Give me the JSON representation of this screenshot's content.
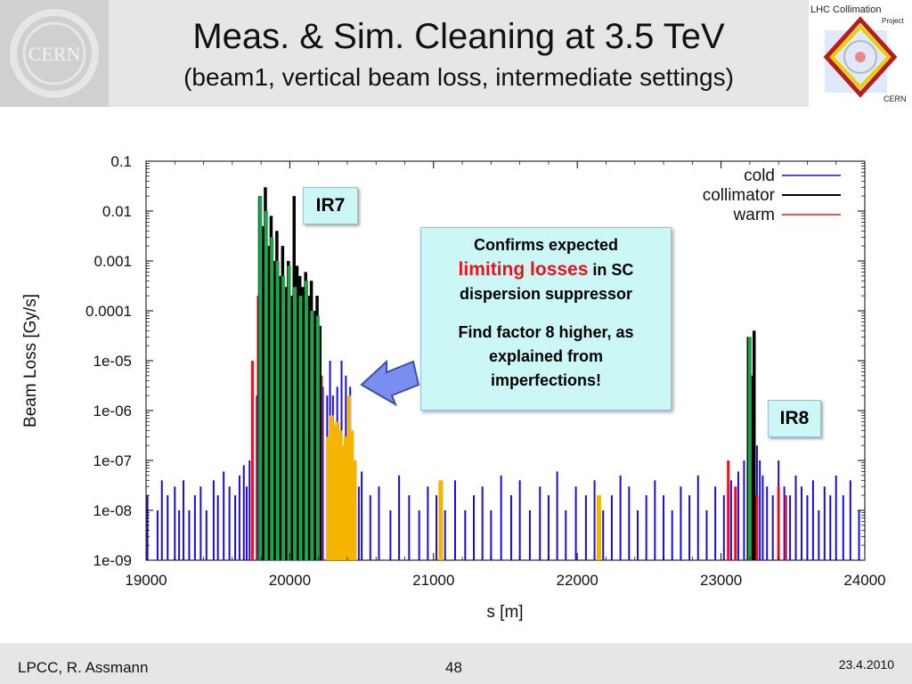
{
  "header": {
    "title": "Meas. & Sim. Cleaning at 3.5 TeV",
    "subtitle": "(beam1, vertical beam loss, intermediate settings)",
    "left_logo_text": "CERN",
    "right_logo": {
      "line1": "LHC Collimation",
      "line2": "Project",
      "line3": "CERN"
    }
  },
  "annotations": {
    "ir7": "IR7",
    "ir8": "IR8",
    "callout": {
      "line1": "Confirms expected",
      "highlight": "limiting losses",
      "line2_rest": " in SC",
      "line3": "dispersion suppressor",
      "line4": "Find factor 8 higher, as",
      "line5": "explained from",
      "line6": "imperfections!"
    }
  },
  "footer": {
    "author": "LPCC, R. Assmann",
    "page": "48",
    "date": "23.4.2010"
  },
  "colors": {
    "cold": "#1a0dd9",
    "collimator": "#000000",
    "warm": "#e8141b",
    "green_bars": "#22a34a",
    "orange_bars": "#f5b400",
    "callout_bg": "#ccf7f7",
    "highlight": "#e8141b"
  },
  "chart_data": {
    "type": "bar",
    "xlabel": "s [m]",
    "ylabel": "Beam Loss [Gy/s]",
    "xlim": [
      19000,
      24000
    ],
    "ylim": [
      1e-09,
      0.1
    ],
    "log_y": true,
    "x_ticks": [
      "19000",
      "20000",
      "21000",
      "22000",
      "23000",
      "24000"
    ],
    "y_ticks": [
      "0.1",
      "0.01",
      "0.001",
      "0.0001",
      "1e-05",
      "1e-06",
      "1e-07",
      "1e-08",
      "1e-09"
    ],
    "legend_position": "top-right",
    "series": [
      {
        "name": "cold",
        "color": "#1a0dd9",
        "x": [
          19010,
          19080,
          19110,
          19150,
          19200,
          19230,
          19260,
          19300,
          19340,
          19380,
          19420,
          19470,
          19500,
          19540,
          19580,
          19620,
          19650,
          19680,
          19700,
          19720,
          19740,
          19770,
          19790,
          19810,
          19830,
          19850,
          19870,
          19890,
          19910,
          19930,
          19950,
          19970,
          19990,
          20010,
          20030,
          20050,
          20070,
          20090,
          20110,
          20130,
          20150,
          20170,
          20190,
          20210,
          20230,
          20260,
          20280,
          20300,
          20330,
          20360,
          20390,
          20420,
          20450,
          20480,
          20500,
          20560,
          20620,
          20700,
          20760,
          20830,
          20900,
          20960,
          21020,
          21080,
          21150,
          21220,
          21280,
          21340,
          21400,
          21470,
          21540,
          21600,
          21670,
          21740,
          21800,
          21860,
          21920,
          21990,
          22060,
          22120,
          22180,
          22240,
          22300,
          22360,
          22420,
          22480,
          22540,
          22600,
          22660,
          22720,
          22780,
          22840,
          22900,
          22960,
          23020,
          23070,
          23120,
          23160,
          23190,
          23210,
          23230,
          23250,
          23270,
          23290,
          23320,
          23360,
          23400,
          23440,
          23480,
          23520,
          23560,
          23600,
          23640,
          23680,
          23720,
          23760,
          23800,
          23850,
          23900,
          23960
        ],
        "values": [
          2e-08,
          1e-08,
          4e-08,
          2e-08,
          3e-08,
          1e-08,
          4e-08,
          1e-08,
          2e-08,
          3e-08,
          1e-08,
          4e-08,
          2e-08,
          6e-08,
          3e-08,
          2e-08,
          5e-08,
          8e-08,
          3e-08,
          1e-07,
          3e-07,
          2e-06,
          5e-06,
          0.003,
          0.0001,
          3e-05,
          0.0002,
          1e-05,
          4e-05,
          2e-06,
          1e-05,
          3e-05,
          1e-06,
          5e-06,
          2e-05,
          4e-06,
          1e-05,
          2e-06,
          4e-06,
          1e-06,
          3e-06,
          2e-06,
          5e-06,
          1e-06,
          3e-06,
          2e-06,
          1e-05,
          2e-06,
          3e-06,
          1e-05,
          5e-06,
          3e-06,
          1e-07,
          3e-08,
          6e-08,
          2e-08,
          3e-08,
          1e-08,
          5e-08,
          2e-08,
          1e-08,
          3e-08,
          2e-08,
          1e-08,
          4e-08,
          1e-08,
          2e-08,
          3e-08,
          1e-08,
          5e-08,
          2e-08,
          4e-08,
          1e-08,
          3e-08,
          2e-08,
          6e-08,
          1e-08,
          3e-08,
          2e-08,
          4e-08,
          1e-08,
          2e-08,
          5e-08,
          3e-08,
          1e-08,
          2e-08,
          4e-08,
          2e-08,
          1e-08,
          3e-08,
          2e-08,
          5e-08,
          1e-08,
          3e-08,
          2e-08,
          4e-08,
          6e-08,
          1e-07,
          2e-05,
          3e-07,
          1e-06,
          2e-07,
          1e-07,
          5e-08,
          3e-08,
          2e-08,
          1e-07,
          3e-08,
          2e-08,
          5e-08,
          3e-08,
          2e-08,
          4e-08,
          1e-08,
          3e-08,
          2e-08,
          5e-08,
          2e-08,
          4e-08,
          1e-08
        ]
      },
      {
        "name": "collimator",
        "color": "#000000",
        "x": [
          19790,
          19810,
          19830,
          19850,
          19870,
          19890,
          19910,
          19930,
          19950,
          19970,
          19990,
          20010,
          20030,
          20050,
          20070,
          20090,
          20110,
          20130,
          20150,
          20170,
          20190,
          20210,
          23190,
          23210,
          23230
        ],
        "values": [
          0.02,
          0.005,
          0.03,
          0.002,
          0.008,
          0.001,
          0.004,
          0.0005,
          0.002,
          0.0003,
          0.001,
          0.0002,
          0.02,
          0.0008,
          0.0005,
          0.0003,
          0.0006,
          0.0002,
          0.0004,
          0.0001,
          0.0002,
          5e-05,
          3e-05,
          5e-06,
          4e-05
        ]
      },
      {
        "name": "warm",
        "color": "#e8141b",
        "x": [
          19740,
          19780,
          19820,
          19860,
          19900,
          19940,
          19980,
          20020,
          20060,
          20100,
          20140,
          20180,
          20220,
          23050,
          23100,
          23250,
          23400,
          23450
        ],
        "values": [
          1e-05,
          0.0002,
          0.001,
          0.0005,
          0.0002,
          0.0001,
          0.0003,
          5e-05,
          0.0002,
          3e-05,
          0.0001,
          2e-05,
          5e-06,
          1e-07,
          3e-08,
          2e-08,
          3e-08,
          2e-08
        ]
      },
      {
        "color": "#22a34a",
        "x": [
          19795,
          19835,
          19875,
          19915,
          19955,
          19995,
          20035,
          20075,
          20115,
          20155,
          20195,
          23200
        ],
        "values": [
          0.02,
          0.01,
          0.003,
          0.001,
          0.0005,
          0.0008,
          0.0003,
          0.0002,
          0.0004,
          0.0001,
          8e-05,
          3e-05
        ]
      },
      {
        "color": "#f5b400",
        "x": [
          20270,
          20290,
          20310,
          20330,
          20350,
          20370,
          20390,
          20410,
          20430,
          20450,
          21050,
          22150
        ],
        "values": [
          3e-07,
          8e-07,
          5e-07,
          6e-07,
          4e-07,
          2e-07,
          3e-07,
          2e-06,
          4e-07,
          1e-07,
          4e-08,
          2e-08
        ]
      }
    ]
  }
}
